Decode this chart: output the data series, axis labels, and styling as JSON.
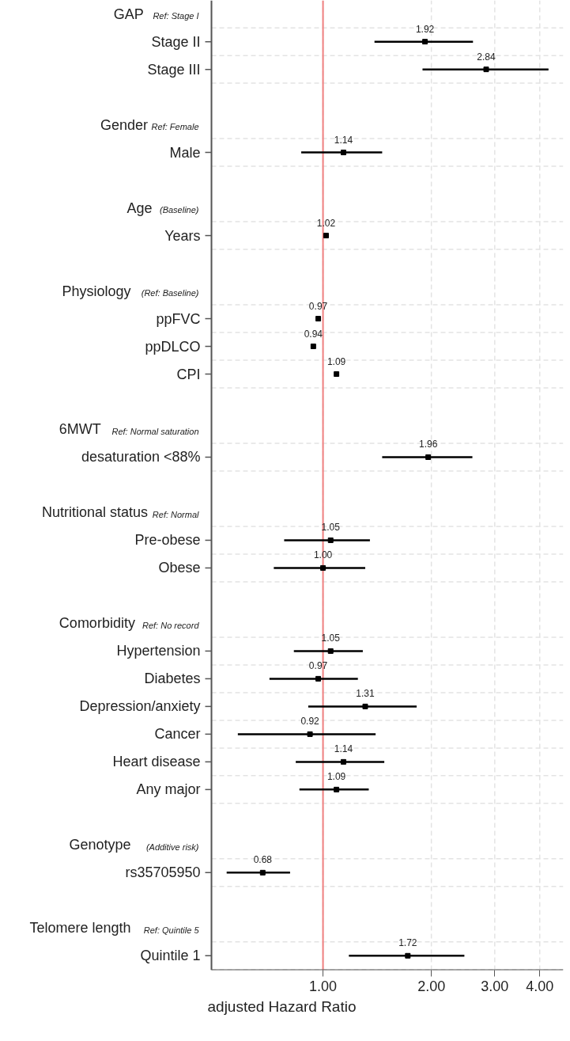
{
  "chart_data": {
    "type": "scatter",
    "orientation": "horizontal",
    "log": "x",
    "xlabel": "adjusted Hazard Ratio",
    "categories": [
      null,
      "Stage II",
      "Stage III",
      null,
      null,
      "Male",
      null,
      null,
      "Years",
      null,
      null,
      "ppFVC",
      "ppDLCO",
      "CPI",
      null,
      null,
      "desaturation <88%",
      null,
      null,
      "Pre-obese",
      "Obese",
      null,
      null,
      "Hypertension",
      "Diabetes",
      "Depression/anxiety",
      "Cancer",
      "Heart disease",
      "Any major",
      null,
      null,
      "rs35705950",
      null,
      null,
      "Quintile 1"
    ],
    "series": [
      {
        "color": "#000000",
        "values": [
          null,
          1.92,
          2.84,
          null,
          null,
          1.14,
          null,
          null,
          1.02,
          null,
          null,
          0.97,
          0.94,
          1.09,
          null,
          null,
          1.96,
          null,
          null,
          1.05,
          1.0,
          null,
          null,
          1.05,
          0.97,
          1.31,
          0.92,
          1.14,
          1.09,
          null,
          null,
          0.68,
          null,
          null,
          1.72
        ],
        "value_labels": [
          null,
          "1.92",
          "2.84",
          null,
          null,
          "1.14",
          null,
          null,
          "1.02",
          null,
          null,
          "0.97",
          "0.94",
          "1.09",
          null,
          null,
          "1.96",
          null,
          null,
          "1.05",
          "1.00",
          null,
          null,
          "1.05",
          "0.97",
          "1.31",
          "0.92",
          "1.14",
          "1.09",
          null,
          null,
          "0.68",
          null,
          null,
          "1.72"
        ],
        "errors": [
          null,
          [
            1.39,
            2.61
          ],
          [
            1.89,
            4.23
          ],
          null,
          null,
          [
            0.87,
            1.46
          ],
          null,
          null,
          null,
          null,
          null,
          null,
          null,
          null,
          null,
          null,
          [
            1.46,
            2.6
          ],
          null,
          null,
          [
            0.78,
            1.35
          ],
          [
            0.73,
            1.31
          ],
          null,
          null,
          [
            0.83,
            1.29
          ],
          [
            0.71,
            1.25
          ],
          [
            0.91,
            1.82
          ],
          [
            0.58,
            1.4
          ],
          [
            0.84,
            1.48
          ],
          [
            0.86,
            1.34
          ],
          null,
          null,
          [
            0.54,
            0.81
          ],
          null,
          null,
          [
            1.18,
            2.47
          ]
        ]
      }
    ],
    "annotations": [
      "GAP",
      "Ref: Stage I",
      "Gender",
      "Ref: Female",
      "Age",
      "(Baseline)",
      "Physiology",
      "(Ref: Baseline)",
      "6MWT",
      "Ref: Normal saturation",
      "Nutritional status",
      "Ref: Normal",
      "Comorbidity",
      "Ref: No record",
      "Genotype",
      "(Additive risk)",
      "Telomere length",
      "Ref: Quintile 5"
    ],
    "marker": "square",
    "grid": true,
    "xlim": [
      0.49,
      4.65
    ],
    "xticks": [
      {
        "value": 1,
        "label": "1.00"
      },
      {
        "value": 2,
        "label": "2.00"
      },
      {
        "value": 3,
        "label": "3.00"
      },
      {
        "value": 4,
        "label": "4.00"
      }
    ],
    "ref_lines": [
      {
        "axis": "x",
        "value": 1,
        "color": "#f08080"
      }
    ]
  }
}
